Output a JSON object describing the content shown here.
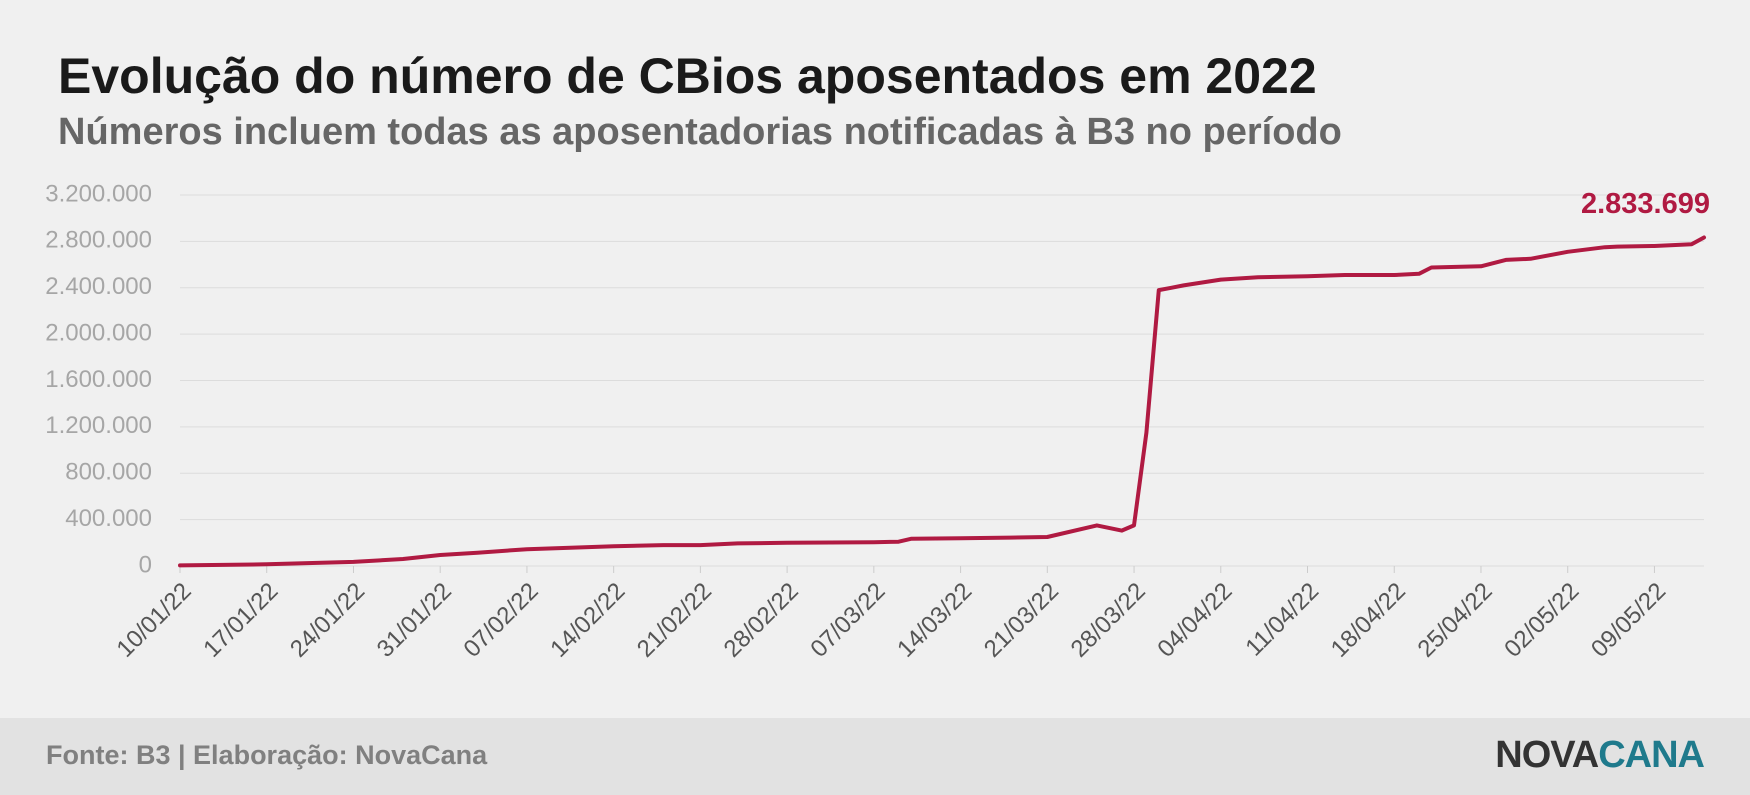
{
  "chart_data": {
    "type": "line",
    "title": "Evolução do número de CBios aposentados em 2022",
    "subtitle": "Números incluem todas as aposentadorias notificadas à B3 no período",
    "x": [
      "2022-01-10",
      "2022-01-17",
      "2022-01-24",
      "2022-01-28",
      "2022-01-31",
      "2022-02-03",
      "2022-02-07",
      "2022-02-14",
      "2022-02-18",
      "2022-02-21",
      "2022-02-24",
      "2022-02-28",
      "2022-03-07",
      "2022-03-09",
      "2022-03-10",
      "2022-03-14",
      "2022-03-18",
      "2022-03-21",
      "2022-03-25",
      "2022-03-27",
      "2022-03-28",
      "2022-03-29",
      "2022-03-30",
      "2022-03-31",
      "2022-04-01",
      "2022-04-04",
      "2022-04-07",
      "2022-04-11",
      "2022-04-14",
      "2022-04-18",
      "2022-04-20",
      "2022-04-21",
      "2022-04-25",
      "2022-04-27",
      "2022-04-29",
      "2022-05-02",
      "2022-05-05",
      "2022-05-06",
      "2022-05-09",
      "2022-05-12",
      "2022-05-13"
    ],
    "values": [
      5000,
      15000,
      35000,
      60000,
      95000,
      115000,
      145000,
      170000,
      180000,
      180000,
      195000,
      200000,
      205000,
      210000,
      235000,
      240000,
      245000,
      250000,
      350000,
      305000,
      350000,
      1150000,
      2380000,
      2400000,
      2420000,
      2470000,
      2490000,
      2500000,
      2510000,
      2510000,
      2520000,
      2575000,
      2585000,
      2640000,
      2650000,
      2710000,
      2750000,
      2755000,
      2760000,
      2775000,
      2833699
    ],
    "value_labels": [
      null,
      null,
      null,
      null,
      null,
      null,
      null,
      null,
      null,
      null,
      null,
      null,
      null,
      null,
      null,
      null,
      null,
      null,
      null,
      null,
      null,
      null,
      null,
      null,
      null,
      null,
      null,
      null,
      null,
      null,
      null,
      null,
      null,
      null,
      null,
      null,
      null,
      null,
      null,
      null,
      "2.833.699"
    ],
    "color": "#b01a42",
    "xlim": [
      "2022-01-10",
      "2022-05-13"
    ],
    "xticks": [
      {
        "value": "2022-01-10",
        "label": "10/01/22"
      },
      {
        "value": "2022-01-17",
        "label": "17/01/22"
      },
      {
        "value": "2022-01-24",
        "label": "24/01/22"
      },
      {
        "value": "2022-01-31",
        "label": "31/01/22"
      },
      {
        "value": "2022-02-07",
        "label": "07/02/22"
      },
      {
        "value": "2022-02-14",
        "label": "14/02/22"
      },
      {
        "value": "2022-02-21",
        "label": "21/02/22"
      },
      {
        "value": "2022-02-28",
        "label": "28/02/22"
      },
      {
        "value": "2022-03-07",
        "label": "07/03/22"
      },
      {
        "value": "2022-03-14",
        "label": "14/03/22"
      },
      {
        "value": "2022-03-21",
        "label": "21/03/22"
      },
      {
        "value": "2022-03-28",
        "label": "28/03/22"
      },
      {
        "value": "2022-04-04",
        "label": "04/04/22"
      },
      {
        "value": "2022-04-11",
        "label": "11/04/22"
      },
      {
        "value": "2022-04-18",
        "label": "18/04/22"
      },
      {
        "value": "2022-04-25",
        "label": "25/04/22"
      },
      {
        "value": "2022-05-02",
        "label": "02/05/22"
      },
      {
        "value": "2022-05-09",
        "label": "09/05/22"
      }
    ],
    "ylim": [
      0,
      3200000
    ],
    "yticks": [
      0,
      {
        "value": 400000,
        "label": "400.000"
      },
      {
        "value": 800000,
        "label": "800.000"
      },
      {
        "value": 1200000,
        "label": "1.200.000"
      },
      {
        "value": 1600000,
        "label": "1.600.000"
      },
      {
        "value": 2000000,
        "label": "2.000.000"
      },
      {
        "value": 2400000,
        "label": "2.400.000"
      },
      {
        "value": 2800000,
        "label": "2.800.000"
      },
      {
        "value": 3200000,
        "label": "3.200.000"
      }
    ],
    "grid": true
  },
  "footer": {
    "source": "Fonte: B3 | Elaboração: NovaCana",
    "logo_left": "NOVA",
    "logo_right": "CANA"
  }
}
